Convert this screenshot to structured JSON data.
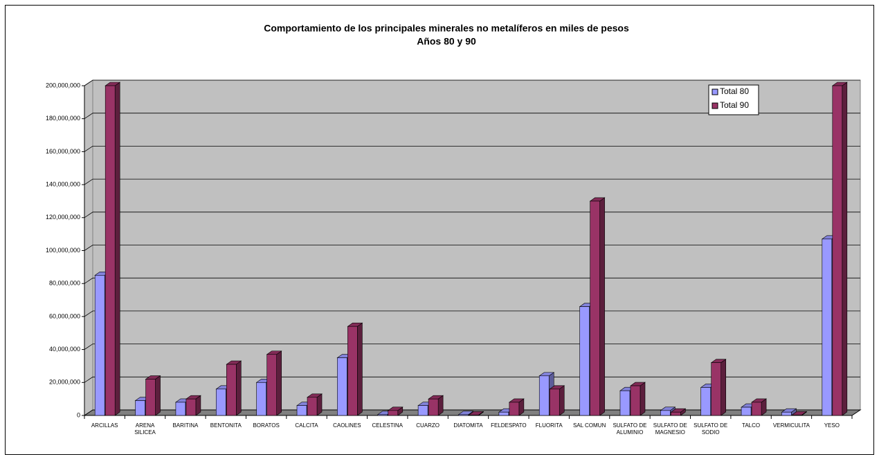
{
  "chart_data": {
    "type": "bar3d",
    "title": "Comportamiento de los principales minerales no metalíferos en miles de pesos",
    "subtitle": "Años 80 y 90",
    "categories": [
      "ARCILLAS",
      "ARENA SILICEA",
      "BARITINA",
      "BENTONITA",
      "BORATOS",
      "CALCITA",
      "CAOLINES",
      "CELESTINA",
      "CUARZO",
      "DIATOMITA",
      "FELDESPATO",
      "FLUORITA",
      "SAL COMUN",
      "SULFATO DE ALUMINIO",
      "SULFATO DE MAGNESIO",
      "SULFATO DE SODIO",
      "TALCO",
      "VERMICULITA",
      "YESO"
    ],
    "series": [
      {
        "name": "Total 80",
        "color": "#9999ff",
        "values": [
          85000000,
          9000000,
          8000000,
          16000000,
          20000000,
          6000000,
          35000000,
          500000,
          6000000,
          500000,
          2000000,
          24000000,
          66000000,
          15000000,
          3000000,
          17000000,
          5000000,
          2000000,
          107000000
        ]
      },
      {
        "name": "Total 90",
        "color": "#993366",
        "values": [
          200000000,
          22000000,
          10000000,
          31000000,
          37000000,
          11000000,
          54000000,
          3000000,
          10000000,
          300000,
          8000000,
          16000000,
          130000000,
          18000000,
          2000000,
          32000000,
          8000000,
          300000,
          200000000
        ]
      }
    ],
    "ylim": [
      0,
      200000000
    ],
    "yticks": [
      0,
      {
        "value": 20000000,
        "label": "20,000,000"
      },
      {
        "value": 40000000,
        "label": "40,000,000"
      },
      {
        "value": 60000000,
        "label": "60,000,000"
      },
      {
        "value": 80000000,
        "label": "80,000,000"
      },
      {
        "value": 100000000,
        "label": "100,000,000"
      },
      {
        "value": 120000000,
        "label": "120,000,000"
      },
      {
        "value": 140000000,
        "label": "140,000,000"
      },
      {
        "value": 160000000,
        "label": "160,000,000"
      },
      {
        "value": 180000000,
        "label": "180,000,000"
      },
      {
        "value": 200000000,
        "label": "200,000,000"
      }
    ],
    "grid": true,
    "legend": "top-right"
  }
}
